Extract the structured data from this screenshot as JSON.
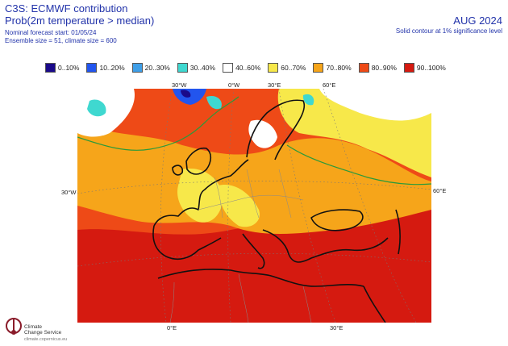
{
  "header": {
    "title": "C3S: ECMWF contribution",
    "subtitle": "Prob(2m temperature > median)",
    "forecast_start": "Nominal forecast start: 01/05/24",
    "ensemble": "Ensemble size = 51, climate size = 600",
    "period": "AUG 2024",
    "significance_note": "Solid contour at 1% significance level"
  },
  "legend": [
    {
      "label": "0..10%",
      "color": "#1a0a8a"
    },
    {
      "label": "10..20%",
      "color": "#2255ee"
    },
    {
      "label": "20..30%",
      "color": "#3f9fe8"
    },
    {
      "label": "30..40%",
      "color": "#3fd8d0"
    },
    {
      "label": "40..60%",
      "color": "#ffffff"
    },
    {
      "label": "60..70%",
      "color": "#f7e84a"
    },
    {
      "label": "70..80%",
      "color": "#f6a51a"
    },
    {
      "label": "80..90%",
      "color": "#ee4a17"
    },
    {
      "label": "90..100%",
      "color": "#d51a10"
    }
  ],
  "axes": {
    "top_lon": [
      "30°W",
      "0°W",
      "30°E",
      "60°E"
    ],
    "bottom_lon": [
      "0°E",
      "30°E"
    ],
    "left_lat": "30°W",
    "right_lat": "60°E"
  },
  "logo": {
    "line1": "Climate",
    "line2": "Change Service",
    "url": "climate.copernicus.eu"
  }
}
